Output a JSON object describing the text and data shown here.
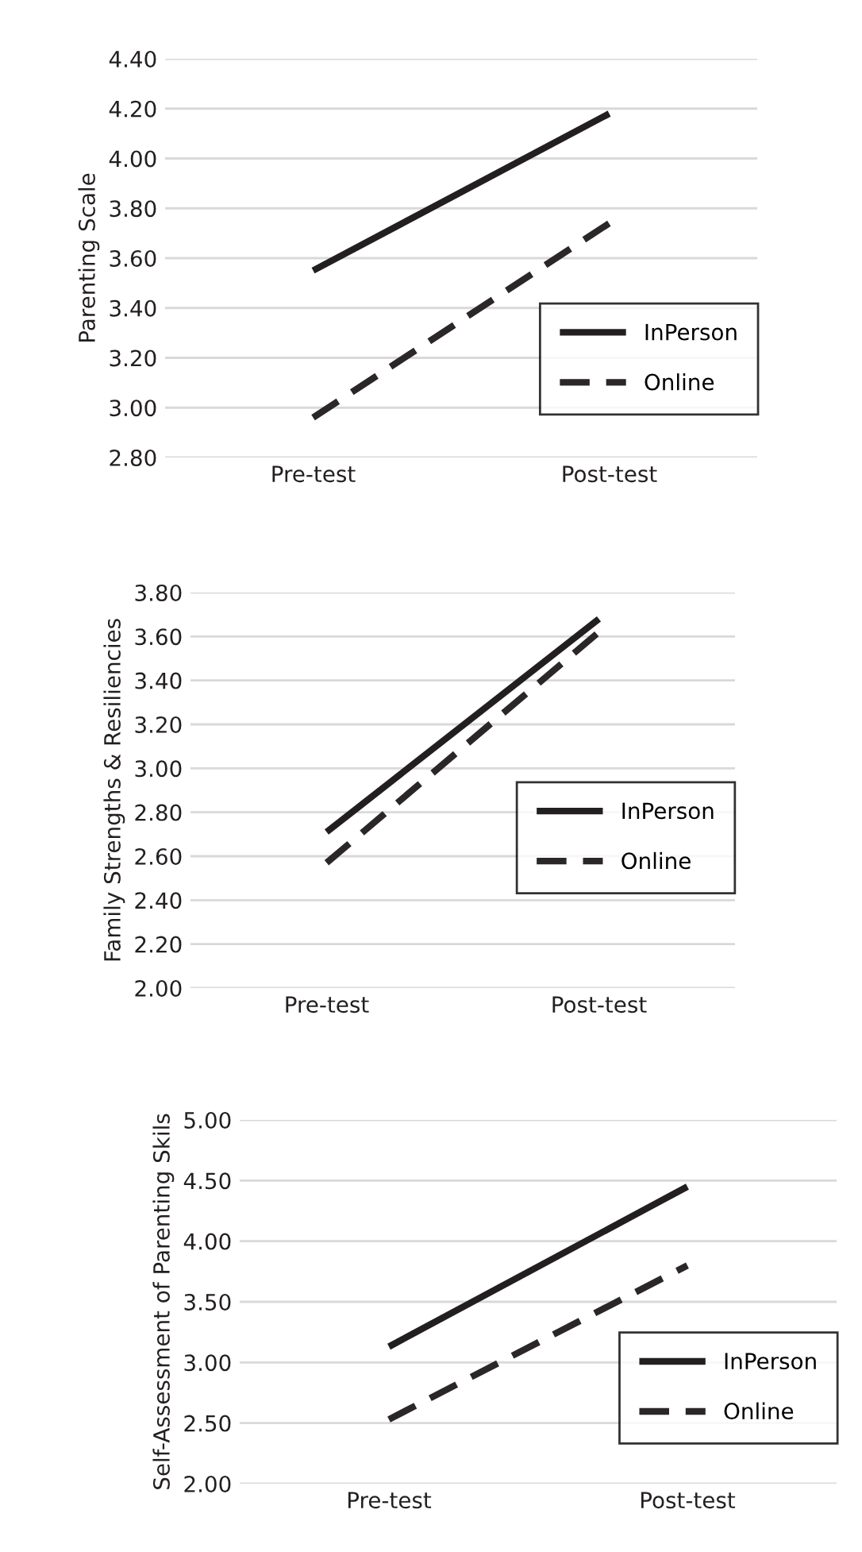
{
  "chart_data": [
    {
      "type": "line",
      "ylabel": "Parenting Scale",
      "categories": [
        "Pre-test",
        "Post-test"
      ],
      "ylim": [
        2.8,
        4.4
      ],
      "yticks": [
        {
          "value": 2.8,
          "label": "2.80"
        },
        {
          "value": 3.0,
          "label": "3.00"
        },
        {
          "value": 3.2,
          "label": "3.20"
        },
        {
          "value": 3.4,
          "label": "3.40"
        },
        {
          "value": 3.6,
          "label": "3.60"
        },
        {
          "value": 3.8,
          "label": "3.80"
        },
        {
          "value": 4.0,
          "label": "4.00"
        },
        {
          "value": 4.2,
          "label": "4.20"
        },
        {
          "value": 4.4,
          "label": "4.40"
        }
      ],
      "grid": "y",
      "legend": "lower right",
      "marker": "none",
      "series": [
        {
          "name": "InPerson",
          "color": "#231f20",
          "line_style": "solid",
          "values": [
            3.55,
            4.18
          ]
        },
        {
          "name": "Online",
          "color": "#2b2728",
          "line_style": "dashed",
          "values": [
            2.96,
            3.74
          ]
        }
      ]
    },
    {
      "type": "line",
      "ylabel": "Family Strengths & Resiliencies",
      "categories": [
        "Pre-test",
        "Post-test"
      ],
      "ylim": [
        2.0,
        3.8
      ],
      "yticks": [
        {
          "value": 2.0,
          "label": "2.00"
        },
        {
          "value": 2.2,
          "label": "2.20"
        },
        {
          "value": 2.4,
          "label": "2.40"
        },
        {
          "value": 2.6,
          "label": "2.60"
        },
        {
          "value": 2.8,
          "label": "2.80"
        },
        {
          "value": 3.0,
          "label": "3.00"
        },
        {
          "value": 3.2,
          "label": "3.20"
        },
        {
          "value": 3.4,
          "label": "3.40"
        },
        {
          "value": 3.6,
          "label": "3.60"
        },
        {
          "value": 3.8,
          "label": "3.80"
        }
      ],
      "grid": "y",
      "legend": "right",
      "marker": "none",
      "series": [
        {
          "name": "InPerson",
          "color": "#231f20",
          "line_style": "solid",
          "values": [
            2.71,
            3.68
          ]
        },
        {
          "name": "Online",
          "color": "#2b2728",
          "line_style": "dashed",
          "values": [
            2.57,
            3.62
          ]
        }
      ]
    },
    {
      "type": "line",
      "ylabel": "Self-Assessment of Parenting Skils",
      "categories": [
        "Pre-test",
        "Post-test"
      ],
      "ylim": [
        2.0,
        5.0
      ],
      "yticks": [
        {
          "value": 2.0,
          "label": "2.00"
        },
        {
          "value": 2.5,
          "label": "2.50"
        },
        {
          "value": 3.0,
          "label": "3.00"
        },
        {
          "value": 3.5,
          "label": "3.50"
        },
        {
          "value": 4.0,
          "label": "4.00"
        },
        {
          "value": 4.5,
          "label": "4.50"
        },
        {
          "value": 5.0,
          "label": "5.00"
        }
      ],
      "grid": "y",
      "legend": "lower right",
      "marker": "none",
      "series": [
        {
          "name": "InPerson",
          "color": "#231f20",
          "line_style": "solid",
          "values": [
            3.13,
            4.45
          ]
        },
        {
          "name": "Online",
          "color": "#2b2728",
          "line_style": "dashed",
          "values": [
            2.53,
            3.8
          ]
        }
      ]
    }
  ]
}
